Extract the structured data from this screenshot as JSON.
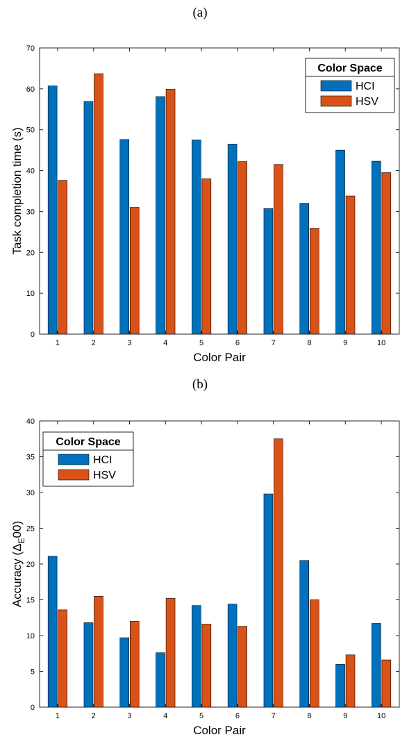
{
  "chart_data": [
    {
      "panel": "(a)",
      "type": "bar",
      "xlabel": "Color Pair",
      "ylabel": "Task completion time (s)",
      "ylim": [
        0,
        70
      ],
      "yticks": [
        0,
        10,
        20,
        30,
        40,
        50,
        60,
        70
      ],
      "categories": [
        "1",
        "2",
        "3",
        "4",
        "5",
        "6",
        "7",
        "8",
        "9",
        "10"
      ],
      "legend_title": "Color Space",
      "legend_position": "top-right",
      "grid": false,
      "series": [
        {
          "name": "HCI",
          "color": "#0072BD",
          "values": [
            60.7,
            56.9,
            47.6,
            58.1,
            47.5,
            46.5,
            30.7,
            32.0,
            45.0,
            42.3
          ]
        },
        {
          "name": "HSV",
          "color": "#D95319",
          "values": [
            37.6,
            63.7,
            31.0,
            59.9,
            38.0,
            42.2,
            41.5,
            25.9,
            33.8,
            39.5
          ]
        }
      ]
    },
    {
      "panel": "(b)",
      "type": "bar",
      "xlabel": "Color Pair",
      "ylabel": "Accuracy (Δ",
      "ylabel_sub": "E",
      "ylabel_end": "00)",
      "ylim": [
        0,
        40
      ],
      "yticks": [
        0,
        5,
        10,
        15,
        20,
        25,
        30,
        35,
        40
      ],
      "categories": [
        "1",
        "2",
        "3",
        "4",
        "5",
        "6",
        "7",
        "8",
        "9",
        "10"
      ],
      "legend_title": "Color Space",
      "legend_position": "top-left",
      "grid": false,
      "series": [
        {
          "name": "HCI",
          "color": "#0072BD",
          "values": [
            21.1,
            11.8,
            9.7,
            7.6,
            14.2,
            14.4,
            29.8,
            20.5,
            6.0,
            11.7
          ]
        },
        {
          "name": "HSV",
          "color": "#D95319",
          "values": [
            13.6,
            15.5,
            12.0,
            15.2,
            11.6,
            11.3,
            37.5,
            15.0,
            7.3,
            6.6
          ]
        }
      ]
    }
  ]
}
